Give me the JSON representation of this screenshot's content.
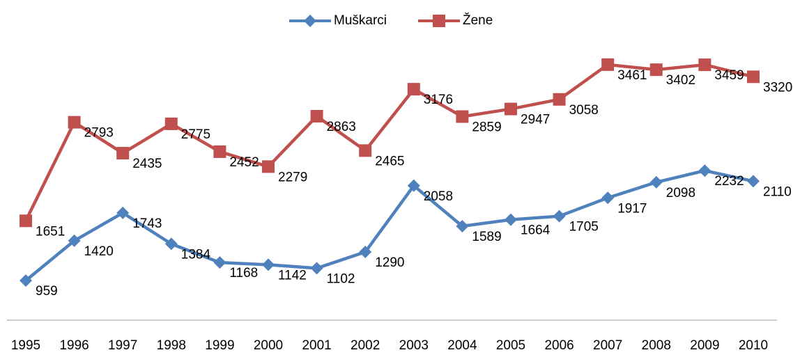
{
  "chart_data": {
    "type": "line",
    "categories": [
      "1995",
      "1996",
      "1997",
      "1998",
      "1999",
      "2000",
      "2001",
      "2002",
      "2003",
      "2004",
      "2005",
      "2006",
      "2007",
      "2008",
      "2009",
      "2010"
    ],
    "series": [
      {
        "name": "Muškarci",
        "color": "#4f81bd",
        "marker": "diamond",
        "values": [
          959,
          1420,
          1743,
          1384,
          1168,
          1142,
          1102,
          1290,
          2058,
          1589,
          1664,
          1705,
          1917,
          2098,
          2232,
          2110
        ]
      },
      {
        "name": "Žene",
        "color": "#c0504d",
        "marker": "square",
        "values": [
          1651,
          2793,
          2435,
          2775,
          2452,
          2279,
          2863,
          2465,
          3176,
          2859,
          2947,
          3058,
          3461,
          3402,
          3459,
          3320
        ]
      }
    ],
    "ylim": [
      500,
      4000
    ],
    "legend": "top",
    "grid": false
  }
}
